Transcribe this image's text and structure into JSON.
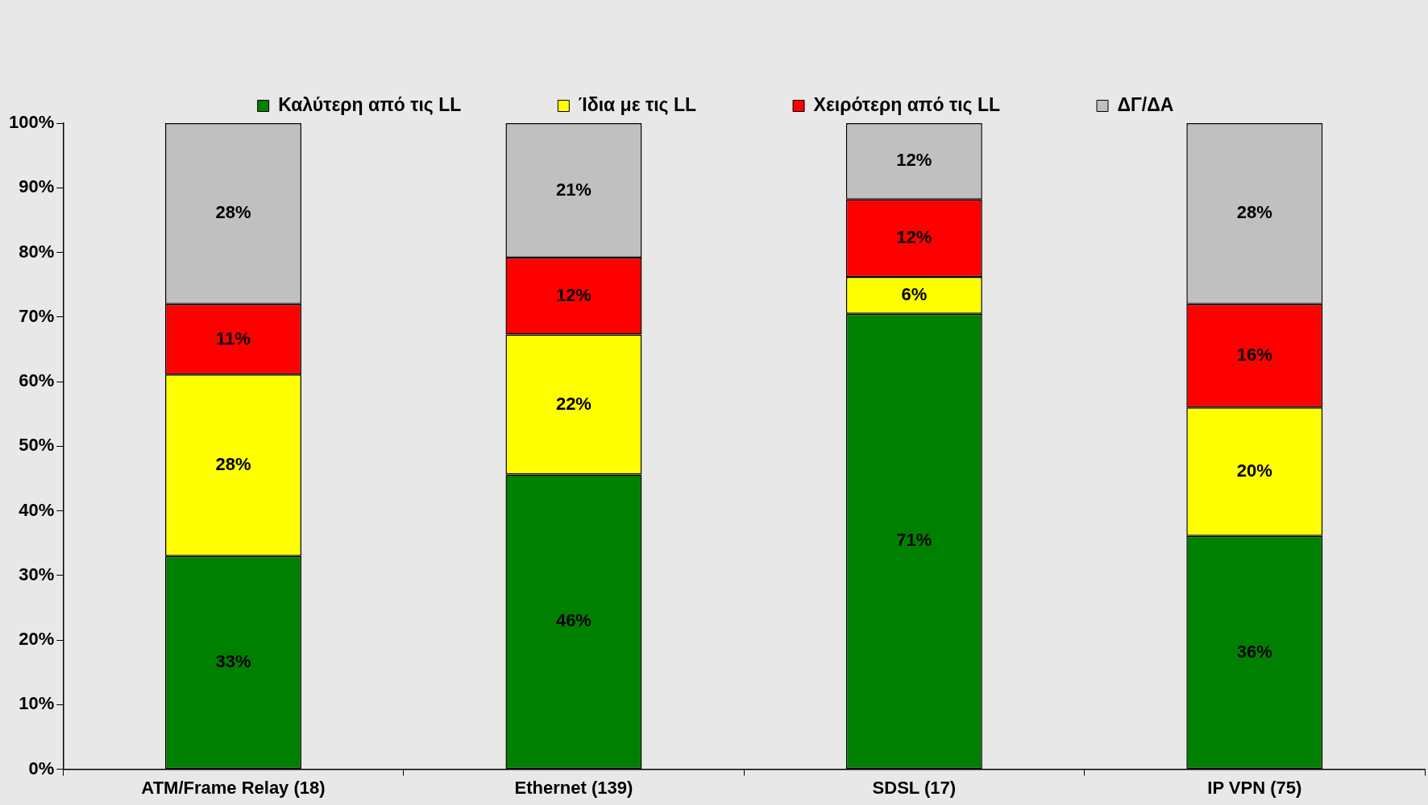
{
  "chart_data": {
    "type": "bar",
    "stacked": true,
    "categories": [
      "ATM/Frame Relay (18)",
      "Ethernet (139)",
      "SDSL (17)",
      "IP VPN (75)"
    ],
    "series": [
      {
        "name": "Καλύτερη από τις LL",
        "color": "#008000",
        "values": [
          33.0,
          45.6,
          70.5,
          36.1
        ],
        "value_labels": [
          "33%",
          "46%",
          "71%",
          "36%"
        ]
      },
      {
        "name": "Ίδια με τις LL",
        "color": "#ffff00",
        "values": [
          28.1,
          21.7,
          5.7,
          19.9
        ],
        "value_labels": [
          "28%",
          "22%",
          "6%",
          "20%"
        ]
      },
      {
        "name": "Χειρότερη από τις LL",
        "color": "#ff0000",
        "values": [
          10.9,
          11.9,
          12.0,
          16.0
        ],
        "value_labels": [
          "11%",
          "12%",
          "12%",
          "16%"
        ]
      },
      {
        "name": "ΔΓ/ΔΑ",
        "color": "#c0c0c0",
        "values": [
          28.0,
          20.8,
          11.8,
          28.0
        ],
        "value_labels": [
          "28%",
          "21%",
          "12%",
          "28%"
        ]
      }
    ],
    "ylim": [
      0,
      100
    ],
    "yticks": [
      {
        "value": 0,
        "label": "0%"
      },
      {
        "value": 10,
        "label": "10%"
      },
      {
        "value": 20,
        "label": "20%"
      },
      {
        "value": 30,
        "label": "30%"
      },
      {
        "value": 40,
        "label": "40%"
      },
      {
        "value": 50,
        "label": "50%"
      },
      {
        "value": 60,
        "label": "60%"
      },
      {
        "value": 70,
        "label": "70%"
      },
      {
        "value": 80,
        "label": "80%"
      },
      {
        "value": 90,
        "label": "90%"
      },
      {
        "value": 100,
        "label": "100%"
      }
    ],
    "grid": false,
    "legend": "top"
  }
}
